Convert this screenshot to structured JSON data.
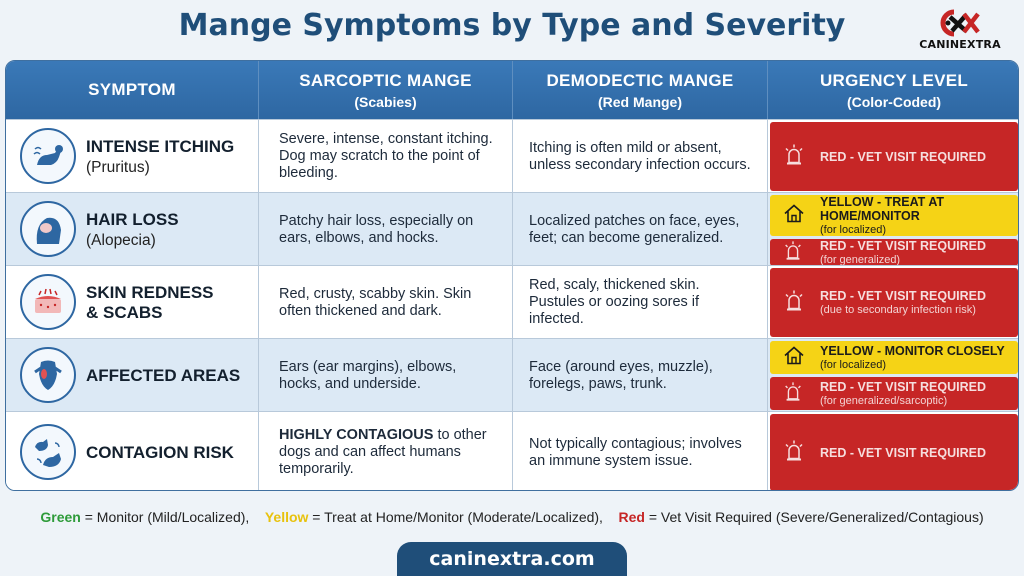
{
  "title": "Mange Symptoms by Type and Severity",
  "logo": {
    "icon": "canine-paw-x-icon",
    "brand": "CANINEXTRA"
  },
  "header": {
    "symptom": "SYMPTOM",
    "sarcoptic": {
      "main": "SARCOPTIC MANGE",
      "sub": "(Scabies)"
    },
    "demodectic": {
      "main": "DEMODECTIC MANGE",
      "sub": "(Red Mange)"
    },
    "urgency": {
      "main": "URGENCY LEVEL",
      "sub": "(Color-Coded)"
    }
  },
  "colors": {
    "red": "#c62626",
    "yellow": "#f5d316",
    "green": "#2e9b3a",
    "header": "#2e67a2"
  },
  "rows": [
    {
      "icon": "scratching-dog-icon",
      "name": "INTENSE ITCHING",
      "sub": "(Pruritus)",
      "sarcoptic": "Severe, intense, constant itching. Dog may scratch to the point of bleeding.",
      "demodectic": "Itching is often mild or absent, unless secondary infection occurs.",
      "urgency": [
        {
          "level": "red",
          "label": "RED - VET VISIT REQUIRED",
          "note": ""
        }
      ]
    },
    {
      "icon": "hair-loss-icon",
      "name": "HAIR LOSS",
      "sub": "(Alopecia)",
      "sarcoptic": "Patchy hair loss, especially on ears, elbows, and hocks.",
      "demodectic": "Localized patches on face, eyes, feet; can become generalized.",
      "urgency": [
        {
          "level": "yellow",
          "label": "YELLOW - TREAT AT HOME/MONITOR",
          "note": "(for localized)"
        },
        {
          "level": "red",
          "label": "RED - VET VISIT REQUIRED",
          "note": "(for generalized)"
        }
      ]
    },
    {
      "icon": "skin-redness-icon",
      "name": "SKIN REDNESS",
      "name2": "& SCABS",
      "sub": "",
      "sarcoptic": "Red, crusty, scabby skin. Skin often thickened and dark.",
      "demodectic": "Red, scaly, thickened skin. Pustules or oozing sores if infected.",
      "urgency": [
        {
          "level": "red",
          "label": "RED - VET VISIT REQUIRED",
          "note": "(due to secondary infection risk)"
        }
      ]
    },
    {
      "icon": "affected-areas-icon",
      "name": "AFFECTED AREAS",
      "sub": "",
      "sarcoptic": "Ears (ear margins), elbows, hocks, and underside.",
      "demodectic": "Face (around eyes, muzzle), forelegs, paws, trunk.",
      "urgency": [
        {
          "level": "yellow",
          "label": "YELLOW - MONITOR CLOSELY",
          "note": "(for localized)"
        },
        {
          "level": "red",
          "label": "RED - VET VISIT REQUIRED",
          "note": "(for generalized/sarcoptic)"
        }
      ]
    },
    {
      "icon": "two-dogs-contagion-icon",
      "name": "CONTAGION RISK",
      "sub": "",
      "sarcoptic_bold": "HIGHLY CONTAGIOUS",
      "sarcoptic": " to other dogs and can affect humans temporarily.",
      "demodectic": "Not typically contagious; involves an immune system issue.",
      "urgency": [
        {
          "level": "red",
          "label": "RED - VET VISIT REQUIRED",
          "note": ""
        }
      ]
    }
  ],
  "legend": {
    "green": "Green",
    "green_text": " = Monitor (Mild/Localized),",
    "yellow": "Yellow",
    "yellow_text": " = Treat at Home/Monitor (Moderate/Localized),",
    "red": "Red",
    "red_text": " = Vet Visit Required (Severe/Generalized/Contagious)"
  },
  "footer": "caninextra.com"
}
